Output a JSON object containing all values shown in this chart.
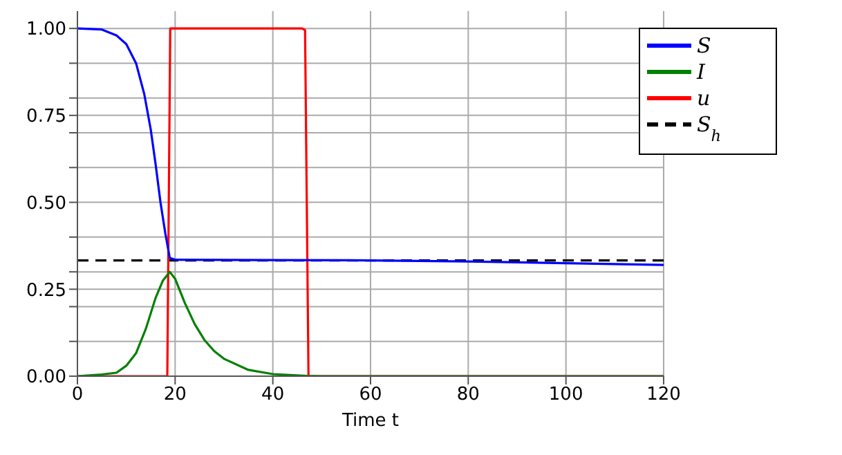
{
  "chart_data": {
    "type": "line",
    "xlabel": "Time t",
    "xlim": [
      0,
      120
    ],
    "xticks": [
      0,
      20,
      40,
      60,
      80,
      100,
      120
    ],
    "ylim": [
      0,
      1.05
    ],
    "yticks": [
      {
        "value": 0,
        "label": "0.00"
      },
      {
        "value": 0.1,
        "label": null
      },
      {
        "value": 0.2,
        "label": null
      },
      {
        "value": 0.25,
        "label": "0.25"
      },
      {
        "value": 0.3,
        "label": null
      },
      {
        "value": 0.4,
        "label": null
      },
      {
        "value": 0.5,
        "label": "0.50"
      },
      {
        "value": 0.6,
        "label": null
      },
      {
        "value": 0.7,
        "label": null
      },
      {
        "value": 0.75,
        "label": "0.75"
      },
      {
        "value": 0.8,
        "label": null
      },
      {
        "value": 0.9,
        "label": null
      },
      {
        "value": 1,
        "label": "1.00"
      }
    ],
    "grid": true,
    "legend": "top right",
    "series": [
      {
        "name": "S",
        "color": "#0000ff",
        "x": [
          0,
          5,
          8,
          10,
          12,
          13.7,
          15,
          16,
          17,
          18,
          18.9,
          20,
          40,
          60,
          80,
          100,
          120
        ],
        "values": [
          1.0,
          0.997,
          0.98,
          0.955,
          0.9,
          0.81,
          0.71,
          0.61,
          0.5,
          0.41,
          0.34,
          0.335,
          0.334,
          0.333,
          0.33,
          0.325,
          0.32
        ]
      },
      {
        "name": "I",
        "color": "#008000",
        "x": [
          0,
          5,
          8,
          10,
          12,
          14,
          16,
          17.5,
          18.9,
          20,
          22,
          24,
          26,
          28,
          30,
          35,
          40,
          47,
          50,
          120
        ],
        "values": [
          0,
          0.005,
          0.01,
          0.03,
          0.066,
          0.136,
          0.225,
          0.275,
          0.3,
          0.28,
          0.21,
          0.15,
          0.104,
          0.072,
          0.05,
          0.018,
          0.006,
          0.001,
          0,
          0
        ]
      },
      {
        "name": "u",
        "color": "#ff0000",
        "x": [
          0,
          18.4,
          19,
          46,
          46.6,
          47.3,
          120
        ],
        "values": [
          0,
          0,
          1,
          1,
          0.995,
          0,
          0
        ]
      },
      {
        "name": "S$_{h}$",
        "color": "#000000",
        "line_style": "dashed",
        "x": [
          0,
          120
        ],
        "values": [
          0.333,
          0.333
        ]
      }
    ]
  }
}
